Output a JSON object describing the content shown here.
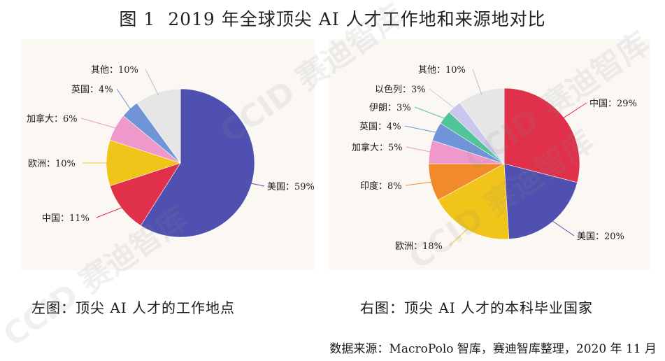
{
  "title": {
    "figure": "图 1",
    "text": "2019 年全球顶尖 AI 人才工作地和来源地对比"
  },
  "captions": {
    "left": "左图：顶尖 AI 人才的工作地点",
    "right": "右图：顶尖 AI 人才的本科毕业国家"
  },
  "source": "数据来源：MacroPolo 智库，赛迪智库整理，2020 年 11 月",
  "watermark": "CCID 赛迪智库",
  "chart_data": [
    {
      "type": "pie",
      "title": "左图：顶尖 AI 人才的工作地点",
      "slices": [
        {
          "label": "美国",
          "value": 59,
          "text": "美国：59%",
          "color": "#5050b0"
        },
        {
          "label": "中国",
          "value": 11,
          "text": "中国：11%",
          "color": "#e0304a"
        },
        {
          "label": "欧洲",
          "value": 10,
          "text": "欧洲：10%",
          "color": "#f0c418"
        },
        {
          "label": "加拿大",
          "value": 6,
          "text": "加拿大：6%",
          "color": "#ee98cc"
        },
        {
          "label": "英国",
          "value": 4,
          "text": "英国：4%",
          "color": "#6f94d8"
        },
        {
          "label": "其他",
          "value": 10,
          "text": "其他：10%",
          "color": "#e6e6e6"
        }
      ]
    },
    {
      "type": "pie",
      "title": "右图：顶尖 AI 人才的本科毕业国家",
      "slices": [
        {
          "label": "中国",
          "value": 29,
          "text": "中国：29%",
          "color": "#e0304a"
        },
        {
          "label": "美国",
          "value": 20,
          "text": "美国：20%",
          "color": "#5050b0"
        },
        {
          "label": "欧洲",
          "value": 18,
          "text": "欧洲：18%",
          "color": "#f0c418"
        },
        {
          "label": "印度",
          "value": 8,
          "text": "印度：8%",
          "color": "#f08a2a"
        },
        {
          "label": "加拿大",
          "value": 5,
          "text": "加拿大：5%",
          "color": "#ee98cc"
        },
        {
          "label": "英国",
          "value": 4,
          "text": "英国：4%",
          "color": "#6f94d8"
        },
        {
          "label": "伊朗",
          "value": 3,
          "text": "伊朗：3%",
          "color": "#52c49a"
        },
        {
          "label": "以色列",
          "value": 3,
          "text": "以色列：3%",
          "color": "#cbc6ee"
        },
        {
          "label": "其他",
          "value": 10,
          "text": "其他：10%",
          "color": "#e6e6e6"
        }
      ]
    }
  ]
}
